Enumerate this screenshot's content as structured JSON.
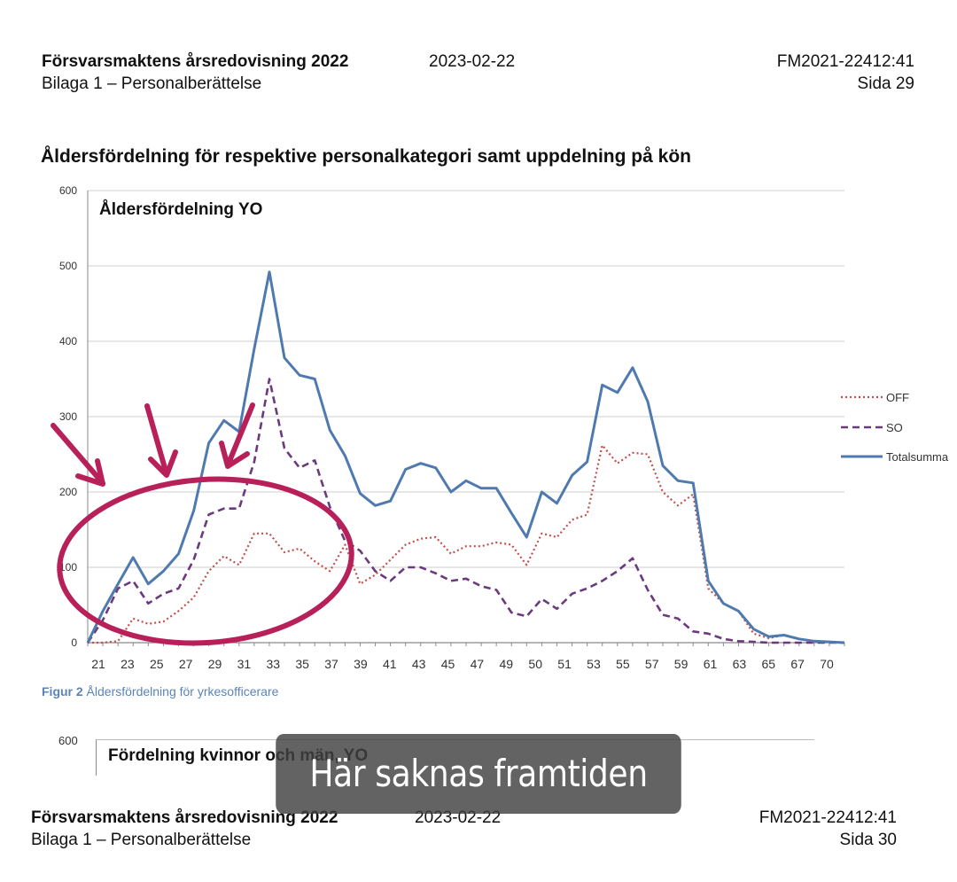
{
  "page1": {
    "doc_title": "Försvarsmaktens årsredovisning 2022",
    "date": "2023-02-22",
    "ref": "FM2021-22412:41",
    "appendix": "Bilaga 1 – Personalberättelse",
    "page": "Sida 29"
  },
  "section_title": "Åldersfördelning för respektive personalkategori samt uppdelning på kön",
  "figure_caption": {
    "label": "Figur 2",
    "text": " Åldersfördelning för yrkesofficerare"
  },
  "figure3": {
    "y_tick": "600",
    "title": "Fördelning kvinnor och män, YO"
  },
  "page2": {
    "doc_title": "Försvarsmaktens årsredovisning 2022",
    "date": "2023-02-22",
    "ref": "FM2021-22412:41",
    "appendix": "Bilaga 1 – Personalberättelse",
    "page": "Sida 30"
  },
  "subtitle": "Här saknas framtiden",
  "colors": {
    "off": "#c0504d",
    "so": "#6b3a7d",
    "total": "#4f7ab0",
    "annotation": "#b8205a"
  },
  "chart_data": {
    "type": "line",
    "title": "Åldersfördelning YO",
    "ylim": [
      0,
      600
    ],
    "yticks": [
      0,
      100,
      200,
      300,
      400,
      500,
      600
    ],
    "x": [
      21,
      22,
      23,
      24,
      25,
      26,
      27,
      28,
      29,
      30,
      31,
      32,
      33,
      34,
      35,
      36,
      37,
      38,
      39,
      40,
      41,
      42,
      43,
      44,
      45,
      46,
      47,
      48,
      49,
      50,
      51,
      52,
      53,
      54,
      55,
      56,
      57,
      58,
      59,
      60,
      61,
      62,
      63,
      64,
      65,
      66,
      67,
      68,
      69,
      70,
      71
    ],
    "xtick_labels": [
      "21",
      "23",
      "25",
      "27",
      "29",
      "31",
      "33",
      "35",
      "37",
      "39",
      "41",
      "43",
      "45",
      "47",
      "49",
      "50",
      "51",
      "53",
      "55",
      "57",
      "59",
      "61",
      "63",
      "65",
      "67",
      "70"
    ],
    "legend_position": "right",
    "grid": true,
    "series": [
      {
        "name": "OFF",
        "style": "dotted",
        "values": [
          0,
          0,
          2,
          32,
          25,
          28,
          42,
          60,
          95,
          115,
          103,
          145,
          145,
          120,
          125,
          108,
          95,
          130,
          78,
          90,
          110,
          130,
          138,
          140,
          118,
          128,
          128,
          133,
          130,
          103,
          145,
          140,
          163,
          170,
          262,
          238,
          252,
          250,
          200,
          182,
          197,
          72,
          52,
          42,
          12,
          6,
          10,
          5,
          2,
          1,
          0
        ]
      },
      {
        "name": "SO",
        "style": "dashed",
        "values": [
          0,
          30,
          72,
          82,
          52,
          65,
          72,
          110,
          170,
          178,
          178,
          240,
          350,
          258,
          232,
          242,
          180,
          135,
          122,
          95,
          82,
          100,
          100,
          92,
          82,
          85,
          75,
          70,
          40,
          35,
          58,
          45,
          65,
          72,
          82,
          95,
          112,
          70,
          37,
          32,
          15,
          12,
          5,
          2,
          1,
          0,
          0,
          0,
          0,
          0,
          0
        ]
      },
      {
        "name": "Totalsumma",
        "style": "solid",
        "values": [
          0,
          42,
          78,
          113,
          78,
          95,
          118,
          175,
          265,
          295,
          280,
          390,
          492,
          378,
          355,
          350,
          282,
          248,
          198,
          182,
          188,
          230,
          238,
          232,
          200,
          215,
          205,
          205,
          172,
          140,
          200,
          185,
          222,
          240,
          342,
          332,
          365,
          320,
          235,
          215,
          212,
          82,
          52,
          42,
          18,
          8,
          10,
          5,
          2,
          1,
          0
        ]
      }
    ]
  }
}
